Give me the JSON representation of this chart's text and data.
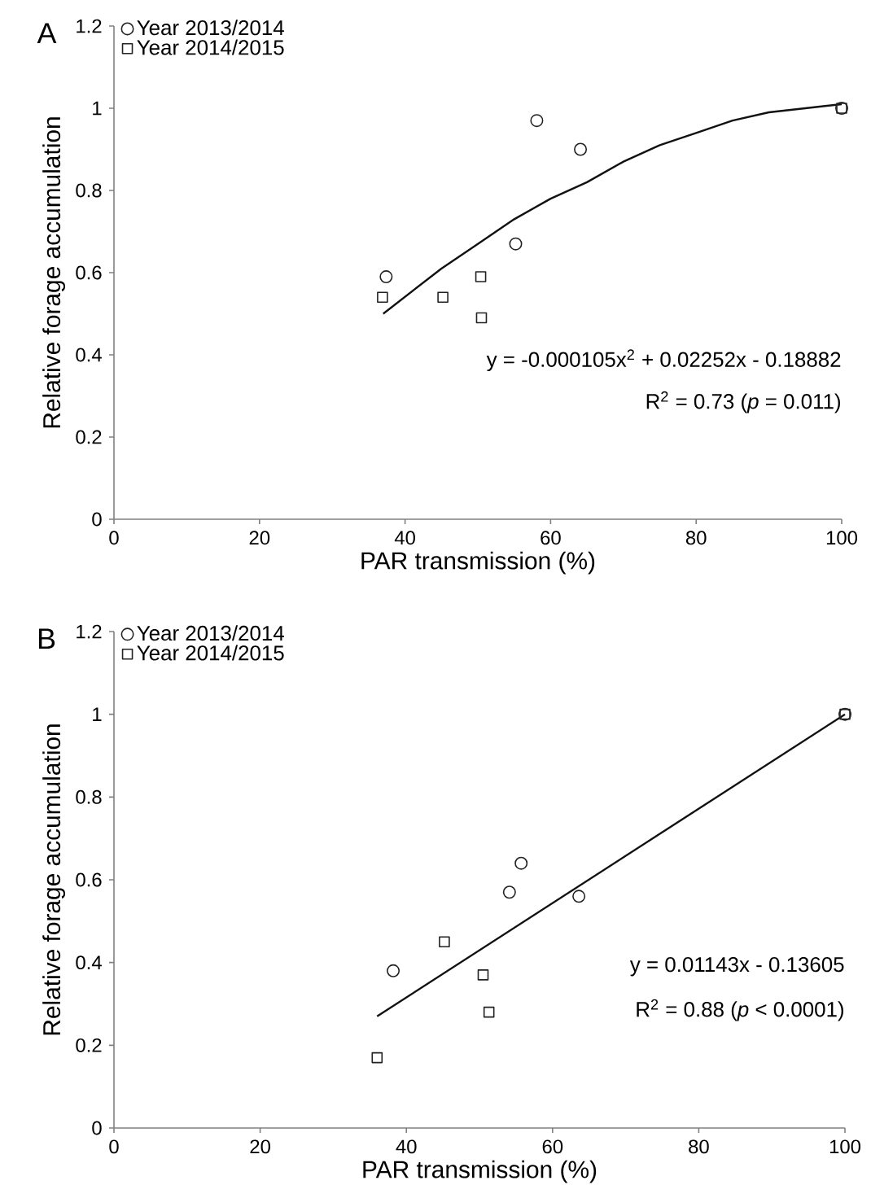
{
  "chart_data": [
    {
      "type": "scatter",
      "title": "A",
      "xlabel": "PAR transmission (%)",
      "ylabel": "Relative forage accumulation",
      "xlim": [
        0,
        100
      ],
      "ylim": [
        0,
        1.2
      ],
      "xticks": [
        0,
        20,
        40,
        60,
        80,
        100
      ],
      "yticks": [
        0,
        0.2,
        0.4,
        0.6,
        0.8,
        1,
        1.2
      ],
      "legend": "top left",
      "annotations": [
        "y = -0.000105x$^{2}$ + 0.02252x - 0.18882",
        "R$^{2}$ = 0.73 (*p* = 0.011)"
      ],
      "series": [
        {
          "name": "Year 2013/2014",
          "color": "#222222",
          "marker": "circle",
          "x": [
            37.4,
            58.1,
            64.1,
            55.2,
            100
          ],
          "values": [
            0.59,
            0.97,
            0.9,
            0.67,
            1.0
          ]
        },
        {
          "name": "Year 2014/2015",
          "color": "#222222",
          "marker": "square",
          "x": [
            36.9,
            45.2,
            50.4,
            50.5,
            100
          ],
          "values": [
            0.54,
            0.54,
            0.59,
            0.49,
            1.0
          ]
        },
        {
          "type": "line",
          "color": "#111111",
          "marker": "none",
          "x": [
            37,
            45,
            50,
            55,
            60,
            65,
            70,
            75,
            80,
            85,
            90,
            95,
            100
          ],
          "values": [
            0.5,
            0.61,
            0.67,
            0.73,
            0.78,
            0.82,
            0.87,
            0.91,
            0.94,
            0.97,
            0.99,
            1.0,
            1.01
          ]
        }
      ]
    },
    {
      "type": "scatter",
      "title": "B",
      "xlabel": "PAR transmission (%)",
      "ylabel": "Relative forage accumulation",
      "xlim": [
        0,
        100
      ],
      "ylim": [
        0,
        1.2
      ],
      "xticks": [
        0,
        20,
        40,
        60,
        80,
        100
      ],
      "yticks": [
        0,
        0.2,
        0.4,
        0.6,
        0.8,
        1,
        1.2
      ],
      "legend": "top left",
      "annotations": [
        "y = 0.01143x - 0.13605",
        "R$^{2}$ = 0.88 (*p* < 0.0001)"
      ],
      "series": [
        {
          "name": "Year 2013/2014",
          "color": "#222222",
          "marker": "circle",
          "x": [
            38.2,
            54.1,
            55.7,
            63.6,
            100
          ],
          "values": [
            0.38,
            0.57,
            0.64,
            0.56,
            1.0
          ]
        },
        {
          "name": "Year 2014/2015",
          "color": "#222222",
          "marker": "square",
          "x": [
            36.0,
            45.2,
            50.5,
            51.3,
            100
          ],
          "values": [
            0.17,
            0.45,
            0.37,
            0.28,
            1.0
          ]
        },
        {
          "type": "line",
          "color": "#111111",
          "marker": "none",
          "x": [
            36.0,
            100
          ],
          "values": [
            0.27,
            1.0
          ]
        }
      ]
    }
  ]
}
